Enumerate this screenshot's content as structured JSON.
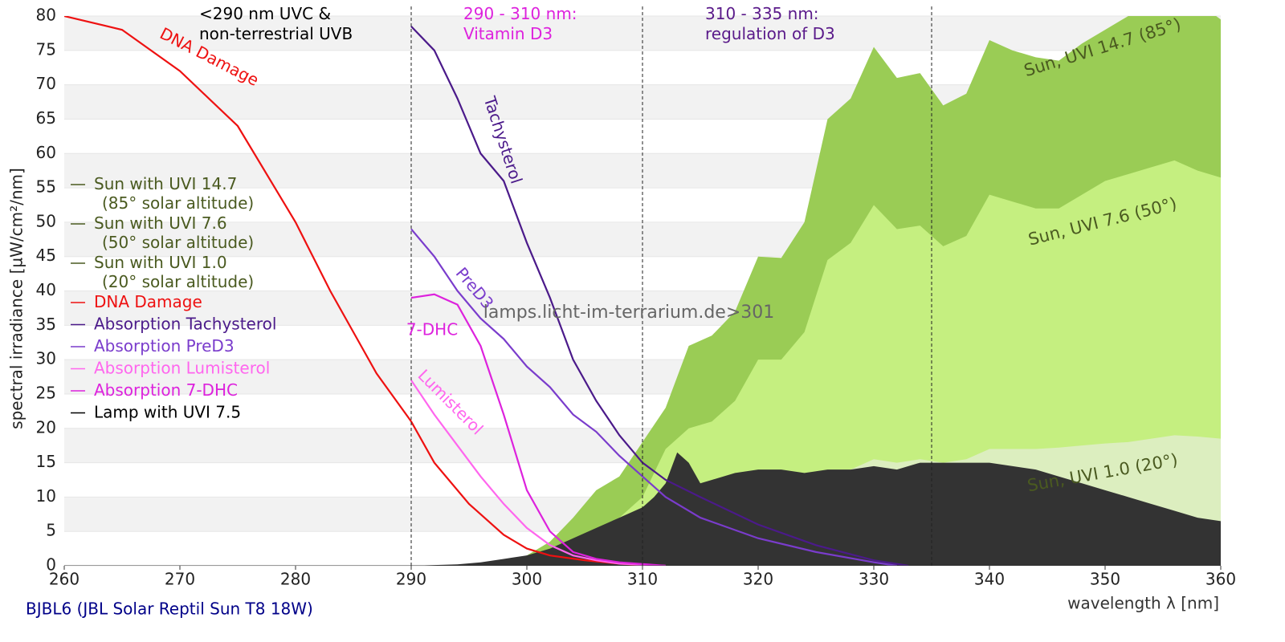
{
  "chart_data": {
    "type": "area",
    "xlabel": "wavelength λ [nm]",
    "ylabel": "spectral irradiance [µW/cm²/nm]",
    "footer": "BJBL6 (JBL Solar Reptil Sun T8 18W)",
    "watermark": "lamps.licht-im-terrarium.de>301",
    "xlim": [
      260,
      360
    ],
    "ylim": [
      0,
      80
    ],
    "xticks": [
      260,
      270,
      280,
      290,
      300,
      310,
      320,
      330,
      340,
      350,
      360
    ],
    "yticks": [
      0,
      5,
      10,
      15,
      20,
      25,
      30,
      35,
      40,
      45,
      50,
      55,
      60,
      65,
      70,
      75,
      80
    ],
    "grid": true,
    "legend": "left",
    "region_lines": [
      290,
      310,
      335
    ],
    "region_notes": [
      {
        "text": "<290 nm UVC &\nnon-terrestrial UVB",
        "color": "#000000"
      },
      {
        "text": "290 - 310 nm:\nVitamin D3",
        "color": "#dd22dd"
      },
      {
        "text": "310 - 335 nm:\nregulation of D3",
        "color": "#5a1a8a"
      }
    ],
    "series": [
      {
        "name": "Sun with UVI 14.7\n(85° solar altitude)",
        "label": "Sun, UVI 14.7 (85°)",
        "kind": "area",
        "color": "#9acc55",
        "text_color": "#4a5a20",
        "x": [
          296,
          298,
          300,
          302,
          304,
          306,
          308,
          310,
          312,
          314,
          316,
          318,
          320,
          322,
          324,
          326,
          328,
          330,
          332,
          334,
          336,
          338,
          340,
          342,
          344,
          346,
          348,
          350,
          352,
          354,
          356,
          358,
          360
        ],
        "values": [
          0,
          0.5,
          1.5,
          3.5,
          7,
          11,
          13,
          18,
          23,
          32,
          33.5,
          37,
          45,
          44.8,
          50,
          65,
          68,
          75.5,
          71,
          71.7,
          67,
          68.7,
          76.5,
          75,
          74,
          73.5,
          76,
          78,
          80,
          82,
          83,
          82,
          79.5
        ]
      },
      {
        "name": "Sun with UVI 7.6\n(50° solar altitude)",
        "label": "Sun, UVI 7.6 (50°)",
        "kind": "area",
        "color": "#c5ef80",
        "text_color": "#4a5a20",
        "x": [
          296,
          298,
          300,
          302,
          304,
          306,
          308,
          310,
          312,
          314,
          316,
          318,
          320,
          322,
          324,
          326,
          328,
          330,
          332,
          334,
          336,
          338,
          340,
          342,
          344,
          346,
          348,
          350,
          352,
          354,
          356,
          358,
          360
        ],
        "values": [
          0,
          0,
          0.5,
          1.5,
          3,
          5,
          7,
          10,
          17,
          20,
          21,
          24,
          30,
          30,
          34,
          44.5,
          47,
          52.5,
          49,
          49.5,
          46.5,
          48,
          54,
          53,
          52,
          52,
          54,
          56,
          57,
          58,
          59,
          57.5,
          56.5
        ]
      },
      {
        "name": "Sun with UVI 1.0\n(20° solar altitude)",
        "label": "Sun, UVI 1.0 (20°)",
        "kind": "area",
        "color": "#dceebf",
        "text_color": "#4a5a20",
        "x": [
          296,
          298,
          300,
          302,
          304,
          306,
          308,
          310,
          312,
          314,
          316,
          318,
          320,
          322,
          324,
          326,
          328,
          330,
          332,
          334,
          336,
          338,
          340,
          342,
          344,
          346,
          348,
          350,
          352,
          354,
          356,
          358,
          360
        ],
        "values": [
          0,
          0,
          0,
          0.1,
          0.3,
          0.6,
          1,
          1.5,
          3,
          4,
          5,
          6,
          7.5,
          8,
          10,
          13,
          14,
          15.5,
          15,
          15.5,
          15,
          15.5,
          17,
          17,
          17,
          17.2,
          17.5,
          17.8,
          18,
          18.5,
          19,
          18.8,
          18.5
        ]
      },
      {
        "name": "DNA Damage",
        "label": "DNA Damage",
        "kind": "line",
        "color": "#ee1111",
        "text_color": "#ee1111",
        "x": [
          260,
          265,
          270,
          275,
          280,
          283,
          285,
          287,
          290,
          292,
          295,
          298,
          300,
          302,
          305,
          308,
          310
        ],
        "values": [
          80,
          78,
          72,
          64,
          50,
          40,
          34,
          28,
          21,
          15,
          9,
          4.5,
          2.5,
          1.5,
          0.8,
          0.3,
          0.1
        ]
      },
      {
        "name": "Absorption Tachysterol",
        "label": "Tachysterol",
        "kind": "line",
        "color": "#4b1a8a",
        "text_color": "#4b1a8a",
        "x": [
          290,
          292,
          294,
          296,
          298,
          300,
          302,
          304,
          306,
          308,
          310,
          312,
          315,
          320,
          325,
          330,
          333
        ],
        "values": [
          78.5,
          75,
          68,
          60,
          56,
          47,
          39,
          30,
          24,
          19,
          15,
          12.5,
          10,
          6,
          3,
          0.8,
          0
        ]
      },
      {
        "name": "Absorption PreD3",
        "label": "PreD3",
        "kind": "line",
        "color": "#7a3ccc",
        "text_color": "#7a3ccc",
        "x": [
          290,
          292,
          294,
          296,
          298,
          300,
          302,
          304,
          306,
          308,
          310,
          312,
          315,
          320,
          325,
          330,
          332
        ],
        "values": [
          49,
          45,
          40,
          36,
          33,
          29,
          26,
          22,
          19.5,
          16,
          13,
          10,
          7,
          4,
          2,
          0.5,
          0
        ]
      },
      {
        "name": "Absorption Lumisterol",
        "label": "Lumisterol",
        "kind": "line",
        "color": "#ff66ee",
        "text_color": "#ff66ee",
        "x": [
          290,
          292,
          294,
          296,
          298,
          300,
          302,
          304,
          306,
          308,
          312
        ],
        "values": [
          27,
          22,
          17.5,
          13,
          9,
          5.5,
          3,
          1.5,
          0.8,
          0.3,
          0
        ]
      },
      {
        "name": "Absorption 7-DHC",
        "label": "7-DHC",
        "kind": "line",
        "color": "#dd22dd",
        "text_color": "#dd22dd",
        "x": [
          290,
          292,
          294,
          296,
          298,
          300,
          302,
          304,
          306,
          308,
          312
        ],
        "values": [
          39,
          39.5,
          38,
          32,
          22,
          11,
          5,
          2,
          1,
          0.5,
          0
        ]
      },
      {
        "name": "Lamp with UVI 7.5",
        "kind": "area",
        "color": "#333333",
        "text_color": "#000000",
        "x": [
          260,
          290,
          292,
          294,
          296,
          298,
          300,
          302,
          304,
          306,
          308,
          310,
          311,
          312,
          313,
          314,
          315,
          316,
          318,
          320,
          322,
          324,
          326,
          328,
          330,
          332,
          334,
          336,
          338,
          340,
          342,
          344,
          346,
          348,
          350,
          352,
          354,
          356,
          358,
          360
        ],
        "values": [
          0,
          0,
          0.1,
          0.2,
          0.5,
          1,
          1.5,
          2.5,
          4,
          5.5,
          7,
          8.5,
          10,
          12,
          16.5,
          15,
          12,
          12.5,
          13.5,
          14,
          14,
          13.5,
          14,
          14,
          14.5,
          14,
          15,
          15,
          15,
          15,
          14.5,
          14,
          13,
          12,
          11,
          10,
          9,
          8,
          7,
          6.5
        ]
      }
    ]
  }
}
